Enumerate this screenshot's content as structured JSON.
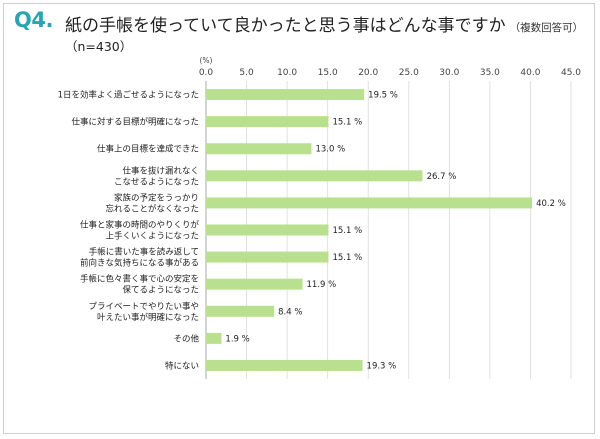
{
  "header": {
    "q_number": "Q4.",
    "title": "紙の手帳を使っていて良かったと思う事はどんな事ですか",
    "note": "（複数回答可）",
    "sample": "（n=430）"
  },
  "colors": {
    "bar": "#b9e08e",
    "accent": "#2aa5b0",
    "grid": "#d9d9d9"
  },
  "chart_data": {
    "type": "bar",
    "orientation": "horizontal",
    "unit_label": "(%)",
    "xlim": [
      0,
      45
    ],
    "ticks": [
      "0.0",
      "5.0",
      "10.0",
      "15.0",
      "20.0",
      "25.0",
      "30.0",
      "35.0",
      "40.0",
      "45.0"
    ],
    "grid": true,
    "categories": [
      [
        "1日を効率よく過ごせるようになった"
      ],
      [
        "仕事に対する目標が明確になった"
      ],
      [
        "仕事上の目標を達成できた"
      ],
      [
        "仕事を抜け漏れなく",
        "こなせるようになった"
      ],
      [
        "家族の予定をうっかり",
        "忘れることがなくなった"
      ],
      [
        "仕事と家事の時間のやりくりが",
        "上手くいくようになった"
      ],
      [
        "手帳に書いた事を読み返して",
        "前向きな気持ちになる事がある"
      ],
      [
        "手帳に色々書く事で心の安定を",
        "保てるようになった"
      ],
      [
        "プライベートでやりたい事や",
        "叶えたい事が明確になった"
      ],
      [
        "その他"
      ],
      [
        "特にない"
      ]
    ],
    "values": [
      19.5,
      15.1,
      13.0,
      26.7,
      40.2,
      15.1,
      15.1,
      11.9,
      8.4,
      1.9,
      19.3
    ],
    "value_labels": [
      "19.5 %",
      "15.1 %",
      "13.0 %",
      "26.7 %",
      "40.2 %",
      "15.1 %",
      "15.1 %",
      "11.9 %",
      "8.4 %",
      "1.9 %",
      "19.3 %"
    ]
  }
}
